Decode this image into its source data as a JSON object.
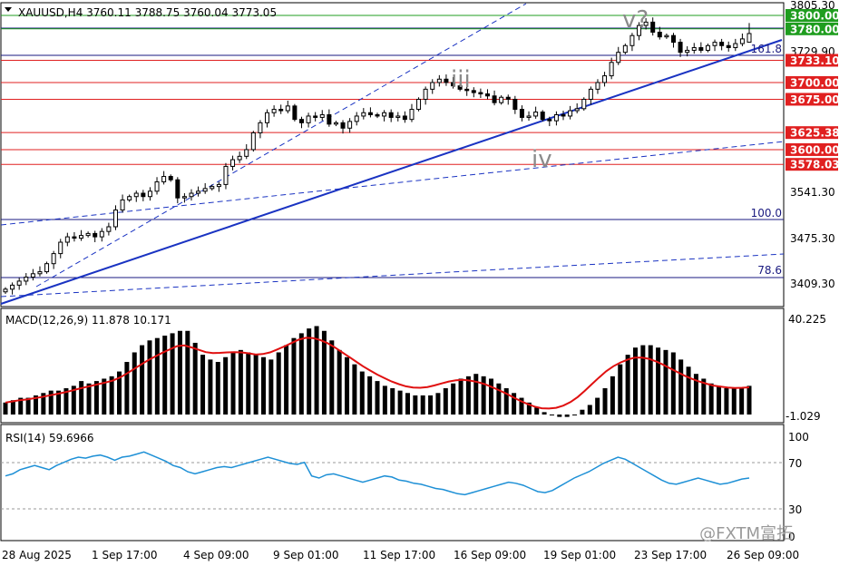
{
  "header": {
    "symbol_line": "XAUUSD,H4  3760.11 3788.75 3760.04 3773.05"
  },
  "price_axis": {
    "ticks": [
      "3805.30",
      "3729.90",
      "3541.30",
      "3475.30",
      "3409.30"
    ]
  },
  "levels": [
    {
      "label": "3800.00",
      "color": "#1f9d1f"
    },
    {
      "label": "3780.00",
      "color": "#1f9d1f"
    },
    {
      "label": "3733.10",
      "color": "#e02020"
    },
    {
      "label": "3700.00",
      "color": "#e02020"
    },
    {
      "label": "3675.00",
      "color": "#e02020"
    },
    {
      "label": "3625.38",
      "color": "#e02020"
    },
    {
      "label": "3600.00",
      "color": "#e02020"
    },
    {
      "label": "3578.03",
      "color": "#e02020"
    }
  ],
  "fib_labels": [
    "161.8",
    "100.0",
    "78.6"
  ],
  "wave_labels": [
    "iii",
    "iv",
    "v?"
  ],
  "macd": {
    "title": "MACD(12,26,9) 11.878 10.171",
    "top_label": "40.225",
    "bottom_label": "-1.029"
  },
  "rsi": {
    "title": "RSI(14) 59.6966",
    "ticks": [
      "100",
      "70",
      "30",
      "0"
    ]
  },
  "time_axis": [
    "28 Aug 2025",
    "1 Sep 17:00",
    "4 Sep 09:00",
    "9 Sep 01:00",
    "11 Sep 17:00",
    "16 Sep 09:00",
    "19 Sep 01:00",
    "23 Sep 17:00",
    "26 Sep 09:00"
  ],
  "watermark": "@FXTM富拓",
  "colors": {
    "support_green": "#1f9d1f",
    "resistance_red": "#e02020",
    "trendline_blue": "#1a33c2",
    "macd_signal": "#e01010",
    "rsi_line": "#1e90d6"
  },
  "chart_data": {
    "type": "candlestick",
    "symbol": "XAUUSD",
    "timeframe": "H4",
    "last_bar": {
      "open": 3760.11,
      "high": 3788.75,
      "low": 3760.04,
      "close": 3773.05
    },
    "ylim": [
      3390,
      3815
    ],
    "closes": [
      3392,
      3398,
      3404,
      3410,
      3415,
      3418,
      3430,
      3445,
      3462,
      3470,
      3468,
      3472,
      3475,
      3470,
      3478,
      3485,
      3510,
      3525,
      3530,
      3535,
      3530,
      3538,
      3552,
      3560,
      3555,
      3528,
      3530,
      3535,
      3538,
      3542,
      3545,
      3548,
      3575,
      3585,
      3590,
      3600,
      3625,
      3640,
      3655,
      3660,
      3658,
      3665,
      3645,
      3640,
      3650,
      3648,
      3652,
      3638,
      3640,
      3632,
      3642,
      3650,
      3655,
      3652,
      3650,
      3655,
      3648,
      3650,
      3645,
      3660,
      3675,
      3690,
      3700,
      3705,
      3700,
      3695,
      3690,
      3688,
      3685,
      3683,
      3680,
      3670,
      3678,
      3675,
      3660,
      3648,
      3650,
      3656,
      3645,
      3643,
      3652,
      3650,
      3658,
      3661,
      3675,
      3690,
      3700,
      3710,
      3730,
      3745,
      3755,
      3770,
      3785,
      3790,
      3775,
      3768,
      3770,
      3760,
      3745,
      3748,
      3752,
      3748,
      3755,
      3760,
      3755,
      3752,
      3758,
      3765,
      3773
    ],
    "levels": [
      3800.0,
      3780.0,
      3733.1,
      3700.0,
      3675.0,
      3625.38,
      3600.0,
      3578.03
    ],
    "fib_extensions": [
      {
        "label": "161.8"
      },
      {
        "label": "100.0"
      },
      {
        "label": "78.6"
      }
    ],
    "wave_labels": [
      "iii",
      "iv",
      "v?"
    ],
    "macd": {
      "params": "12,26,9",
      "main": 11.878,
      "signal": 10.171,
      "range": [
        -1.029,
        40.225
      ],
      "histogram": [
        5,
        6,
        7,
        7,
        8,
        9,
        10,
        10,
        11,
        12,
        14,
        13,
        14,
        15,
        16,
        18,
        22,
        26,
        29,
        31,
        32,
        33,
        34,
        35,
        35,
        30,
        25,
        23,
        22,
        24,
        26,
        27,
        26,
        25,
        24,
        23,
        26,
        29,
        32,
        34,
        36,
        37,
        35,
        31,
        27,
        24,
        21,
        18,
        16,
        14,
        12,
        11,
        10,
        9,
        8,
        8,
        8,
        9,
        11,
        13,
        15,
        16,
        17,
        16,
        15,
        13,
        11,
        9,
        7,
        5,
        3,
        1,
        0,
        -1,
        -1,
        0,
        2,
        4,
        7,
        11,
        16,
        21,
        25,
        28,
        29,
        29,
        28,
        27,
        26,
        23,
        20,
        17,
        15,
        13,
        12,
        11,
        11,
        11,
        12
      ],
      "signal_line": [
        5,
        5.5,
        6,
        6.3,
        6.8,
        7.3,
        7.9,
        8.5,
        9.1,
        9.8,
        10.6,
        11.3,
        12,
        12.7,
        13.4,
        14.2,
        15.5,
        17.2,
        19.1,
        21,
        22.8,
        24.4,
        25.9,
        27.3,
        28.6,
        28.9,
        28.1,
        27.1,
        26.1,
        25.7,
        25.8,
        26,
        26.1,
        26,
        25.6,
        25.1,
        25.3,
        26,
        27.2,
        28.5,
        29.9,
        31.3,
        32.1,
        32,
        31.2,
        29.9,
        28.2,
        26.2,
        24.2,
        22.2,
        20.2,
        18.4,
        16.7,
        15.2,
        13.8,
        12.7,
        11.8,
        11.3,
        11.2,
        11.5,
        12.2,
        13,
        13.8,
        14.3,
        14.5,
        14.2,
        13.6,
        12.7,
        11.5,
        10.2,
        8.8,
        7.2,
        5.7,
        4.4,
        3.3,
        2.6,
        2.5,
        2.8,
        3.7,
        5.2,
        7.3,
        9.9,
        12.7,
        15.5,
        18.1,
        20.2,
        21.8,
        23,
        23.8,
        23.8,
        23.3,
        22.2,
        20.8,
        19.2,
        17.7,
        16.2,
        14.9,
        13.8,
        12.9,
        12.1,
        11.7,
        11.3,
        11.1,
        11.2,
        11.4
      ]
    },
    "rsi": {
      "period": 14,
      "value": 59.6966,
      "levels": [
        30,
        70
      ],
      "values": [
        62,
        64,
        68,
        70,
        72,
        70,
        68,
        72,
        75,
        78,
        80,
        79,
        81,
        82,
        80,
        77,
        80,
        81,
        83,
        85,
        82,
        79,
        76,
        72,
        70,
        66,
        64,
        66,
        68,
        70,
        71,
        70,
        72,
        74,
        76,
        78,
        80,
        78,
        76,
        74,
        73,
        75,
        62,
        60,
        63,
        64,
        62,
        60,
        58,
        56,
        58,
        60,
        62,
        61,
        58,
        57,
        55,
        54,
        52,
        50,
        49,
        47,
        45,
        44,
        46,
        48,
        50,
        52,
        54,
        56,
        55,
        53,
        50,
        47,
        46,
        48,
        52,
        56,
        60,
        63,
        66,
        70,
        74,
        77,
        80,
        78,
        74,
        70,
        66,
        62,
        58,
        55,
        54,
        56,
        58,
        60,
        58,
        56,
        54,
        55,
        57,
        59,
        60
      ]
    }
  }
}
